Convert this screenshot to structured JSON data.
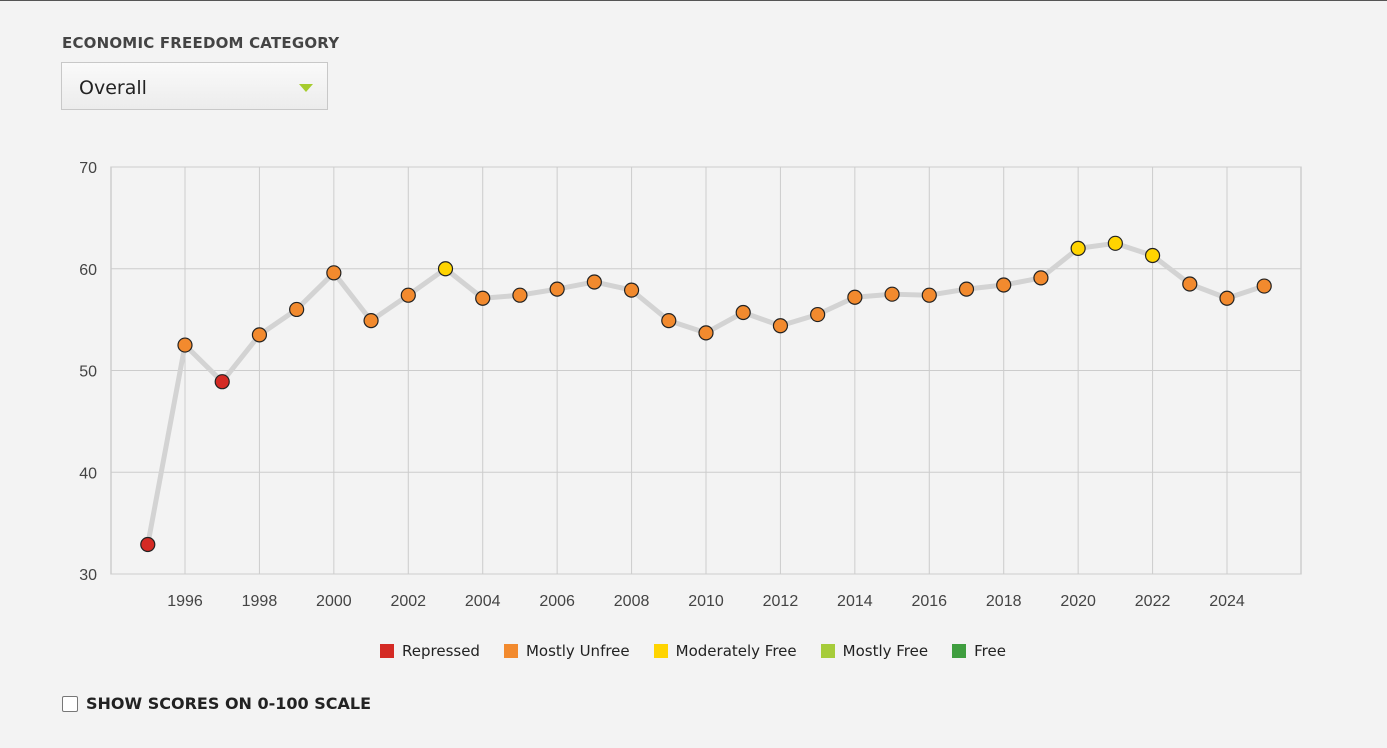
{
  "category_label": "ECONOMIC FREEDOM CATEGORY",
  "dropdown": {
    "selected": "Overall"
  },
  "scale_toggle": {
    "label": "SHOW SCORES ON 0-100 SCALE",
    "checked": false
  },
  "chart_data": {
    "type": "line",
    "ylim": [
      30,
      70
    ],
    "yticks": [
      30,
      40,
      50,
      60,
      70
    ],
    "xlim": [
      1994,
      2026
    ],
    "xticks": [
      1996,
      1998,
      2000,
      2002,
      2004,
      2006,
      2008,
      2010,
      2012,
      2014,
      2016,
      2018,
      2020,
      2022,
      2024
    ],
    "grid": true,
    "legend_placement": "bottom",
    "line_color": "#d3d3d3",
    "legend": [
      {
        "name": "Repressed",
        "color": "#d42a24"
      },
      {
        "name": "Mostly Unfree",
        "color": "#f28a2e"
      },
      {
        "name": "Moderately Free",
        "color": "#ffd400"
      },
      {
        "name": "Mostly Free",
        "color": "#a6cc3a"
      },
      {
        "name": "Free",
        "color": "#3f9e3f"
      }
    ],
    "points": [
      {
        "x": 1995,
        "y": 32.9,
        "category": "Repressed"
      },
      {
        "x": 1996,
        "y": 52.5,
        "category": "Mostly Unfree"
      },
      {
        "x": 1997,
        "y": 48.9,
        "category": "Repressed"
      },
      {
        "x": 1998,
        "y": 53.5,
        "category": "Mostly Unfree"
      },
      {
        "x": 1999,
        "y": 56.0,
        "category": "Mostly Unfree"
      },
      {
        "x": 2000,
        "y": 59.6,
        "category": "Mostly Unfree"
      },
      {
        "x": 2001,
        "y": 54.9,
        "category": "Mostly Unfree"
      },
      {
        "x": 2002,
        "y": 57.4,
        "category": "Mostly Unfree"
      },
      {
        "x": 2003,
        "y": 60.0,
        "category": "Moderately Free"
      },
      {
        "x": 2004,
        "y": 57.1,
        "category": "Mostly Unfree"
      },
      {
        "x": 2005,
        "y": 57.4,
        "category": "Mostly Unfree"
      },
      {
        "x": 2006,
        "y": 58.0,
        "category": "Mostly Unfree"
      },
      {
        "x": 2007,
        "y": 58.7,
        "category": "Mostly Unfree"
      },
      {
        "x": 2008,
        "y": 57.9,
        "category": "Mostly Unfree"
      },
      {
        "x": 2009,
        "y": 54.9,
        "category": "Mostly Unfree"
      },
      {
        "x": 2010,
        "y": 53.7,
        "category": "Mostly Unfree"
      },
      {
        "x": 2011,
        "y": 55.7,
        "category": "Mostly Unfree"
      },
      {
        "x": 2012,
        "y": 54.4,
        "category": "Mostly Unfree"
      },
      {
        "x": 2013,
        "y": 55.5,
        "category": "Mostly Unfree"
      },
      {
        "x": 2014,
        "y": 57.2,
        "category": "Mostly Unfree"
      },
      {
        "x": 2015,
        "y": 57.5,
        "category": "Mostly Unfree"
      },
      {
        "x": 2016,
        "y": 57.4,
        "category": "Mostly Unfree"
      },
      {
        "x": 2017,
        "y": 58.0,
        "category": "Mostly Unfree"
      },
      {
        "x": 2018,
        "y": 58.4,
        "category": "Mostly Unfree"
      },
      {
        "x": 2019,
        "y": 59.1,
        "category": "Mostly Unfree"
      },
      {
        "x": 2020,
        "y": 62.0,
        "category": "Moderately Free"
      },
      {
        "x": 2021,
        "y": 62.5,
        "category": "Moderately Free"
      },
      {
        "x": 2022,
        "y": 61.3,
        "category": "Moderately Free"
      },
      {
        "x": 2023,
        "y": 58.5,
        "category": "Mostly Unfree"
      },
      {
        "x": 2024,
        "y": 57.1,
        "category": "Mostly Unfree"
      },
      {
        "x": 2025,
        "y": 58.3,
        "category": "Mostly Unfree"
      }
    ]
  }
}
